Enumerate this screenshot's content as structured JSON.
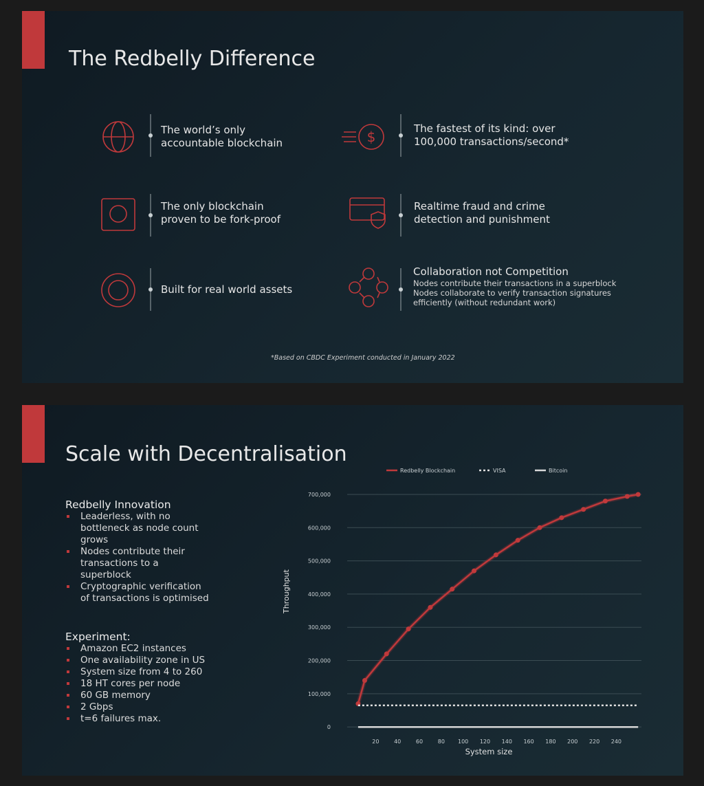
{
  "slide1": {
    "title": "The Redbelly Difference",
    "features": [
      {
        "text": "The world’s only accountable blockchain"
      },
      {
        "text": "The fastest of its kind: over 100,000 transactions/second*"
      },
      {
        "text": "The only blockchain proven to be fork-proof"
      },
      {
        "text": "Realtime fraud and crime detection and punishment"
      },
      {
        "text": "Built for real world assets"
      },
      {
        "text": "Collaboration not Competition",
        "lines": [
          "Nodes contribute their transactions in a superblock",
          "Nodes collaborate to verify transaction signatures efficiently (without redundant work)"
        ]
      }
    ],
    "footnote": "*Based on CBDC Experiment conducted in January 2022"
  },
  "slide2": {
    "title": "Scale with Decentralisation",
    "innovation": {
      "heading": "Redbelly Innovation",
      "items": [
        "Leaderless, with no bottleneck as node count grows",
        "Nodes contribute their transactions to a superblock",
        "Cryptographic verification of transactions is optimised"
      ]
    },
    "experiment": {
      "heading": "Experiment:",
      "items": [
        "Amazon EC2 instances",
        "One availability zone in US",
        "System size from 4 to 260",
        "18 HT cores per node",
        "60 GB memory",
        "2 Gbps",
        "t=6 failures max."
      ]
    }
  },
  "chart_data": {
    "type": "line",
    "x_label": "System size",
    "y_label": "Throughput",
    "xlim": [
      -6,
      263
    ],
    "ylim": [
      -10000,
      700000
    ],
    "xticks": [
      20,
      40,
      60,
      80,
      100,
      120,
      140,
      160,
      180,
      200,
      220,
      240
    ],
    "yticks": [
      0,
      {
        "value": 100000,
        "label": "100,000"
      },
      {
        "value": 200000,
        "label": "200,000"
      },
      {
        "value": 300000,
        "label": "300,000"
      },
      {
        "value": 400000,
        "label": "400,000"
      },
      {
        "value": 500000,
        "label": "500,000"
      },
      {
        "value": 600000,
        "label": "600,000"
      },
      {
        "value": 700000,
        "label": "700,000"
      }
    ],
    "grid": true,
    "series": [
      {
        "name": "Redbelly Blockchain",
        "color": "#c0393b",
        "markers": true,
        "x": [
          4,
          10,
          30,
          50,
          70,
          90,
          110,
          130,
          150,
          170,
          190,
          210,
          230,
          250,
          260
        ],
        "values": [
          70000,
          140000,
          220000,
          295000,
          360000,
          415000,
          470000,
          518000,
          562000,
          600000,
          630000,
          655000,
          680000,
          694000,
          700000
        ]
      },
      {
        "name": "VISA",
        "color": "#e0e0e0",
        "dashed": true,
        "x": [
          4,
          260
        ],
        "values": [
          65000,
          65000
        ]
      },
      {
        "name": "Bitcoin",
        "color": "#d8d8d8",
        "x": [
          4,
          260
        ],
        "values": [
          7,
          7
        ]
      }
    ]
  }
}
